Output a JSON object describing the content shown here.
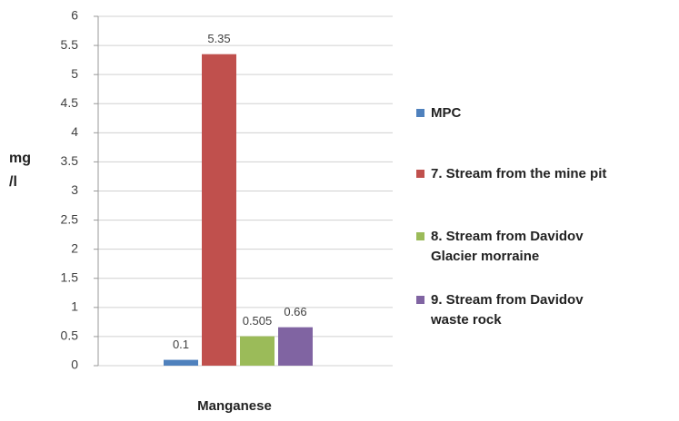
{
  "chart_data": {
    "type": "bar",
    "categories": [
      "Manganese"
    ],
    "series": [
      {
        "name": "MPC",
        "color": "#4f81bd",
        "values": [
          0.1
        ]
      },
      {
        "name": "7. Stream from the mine pit",
        "color": "#c0504d",
        "values": [
          5.35
        ]
      },
      {
        "name": "8. Stream from Davidov Glacier morraine",
        "color": "#9bbb59",
        "values": [
          0.505
        ]
      },
      {
        "name": "9. Stream from Davidov waste rock",
        "color": "#8064a2",
        "values": [
          0.66
        ]
      }
    ],
    "y_label": "mg /l",
    "ylim": [
      0,
      6
    ],
    "yticks": [
      0,
      0.5,
      1,
      1.5,
      2,
      2.5,
      3,
      3.5,
      4,
      4.5,
      5,
      5.5,
      6
    ],
    "grid": true,
    "legend": "right"
  }
}
